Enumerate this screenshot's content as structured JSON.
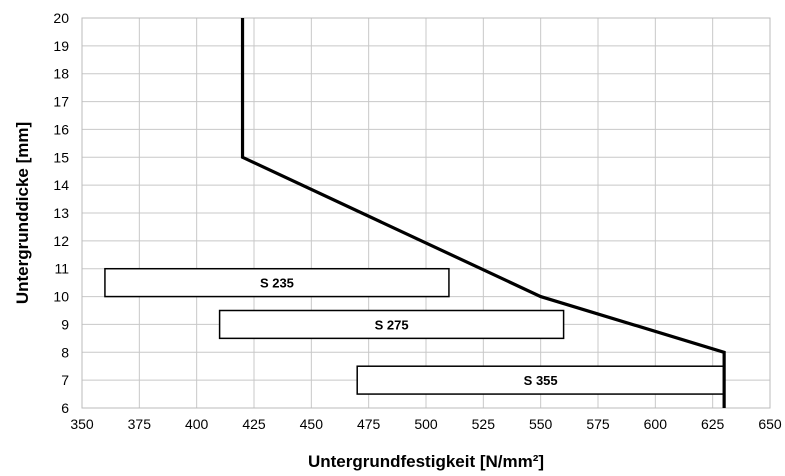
{
  "chart_data": {
    "type": "line",
    "xlabel": "Untergrundfestigkeit  [N/mm²]",
    "ylabel": "Untergrunddicke  [mm]",
    "xlim": [
      350,
      650
    ],
    "ylim": [
      6,
      20
    ],
    "xticks": [
      350,
      375,
      400,
      425,
      450,
      475,
      500,
      525,
      550,
      575,
      600,
      625,
      650
    ],
    "yticks": [
      6,
      7,
      8,
      9,
      10,
      11,
      12,
      13,
      14,
      15,
      16,
      17,
      18,
      19,
      20
    ],
    "grid": true,
    "series": [
      {
        "x": [
          420,
          420,
          550,
          630,
          630
        ],
        "y": [
          20,
          15,
          10,
          8,
          6
        ]
      }
    ],
    "ranges": [
      {
        "label": "S 235",
        "x_start": 360,
        "x_end": 510,
        "y_low": 10,
        "y_high": 11
      },
      {
        "label": "S 275",
        "x_start": 410,
        "x_end": 560,
        "y_low": 8.5,
        "y_high": 9.5
      },
      {
        "label": "S 355",
        "x_start": 470,
        "x_end": 630,
        "y_low": 6.5,
        "y_high": 7.5
      }
    ]
  }
}
